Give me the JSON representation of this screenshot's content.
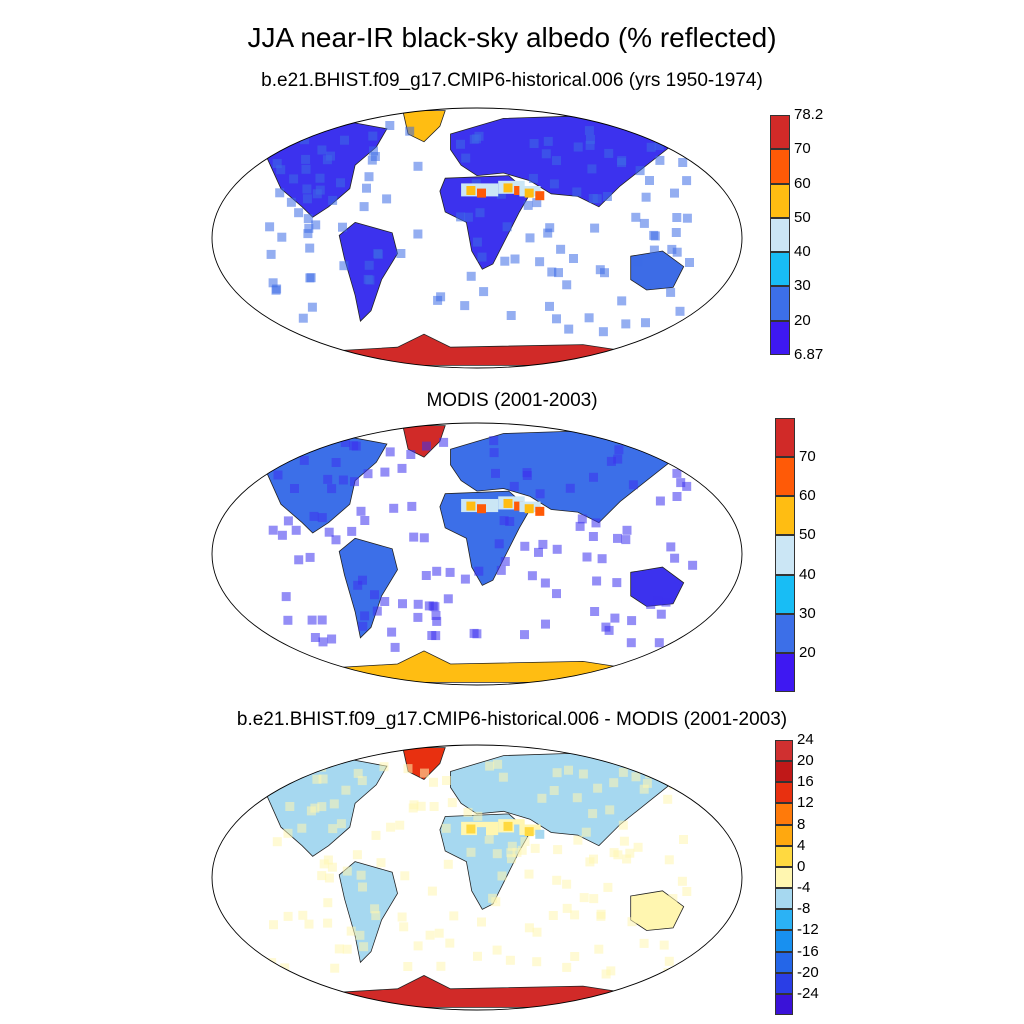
{
  "title": "JJA near-IR black-sky albedo (% reflected)",
  "panels": [
    {
      "subtitle": "b.e21.BHIST.f09_g17.CMIP6-historical.006 (yrs 1950-1974)",
      "colorbar": {
        "colors": [
          "#3e18f2",
          "#3c6fe8",
          "#18bdf5",
          "#cbe6f5",
          "#ffbd12",
          "#ff5a07",
          "#d12a28"
        ],
        "labels": [
          "6.87",
          "20",
          "30",
          "40",
          "50",
          "60",
          "70",
          "78.2"
        ]
      },
      "palette": {
        "land": "#3c32ee",
        "land_alt": "#3d6ce6",
        "desert": "#cbe6f5",
        "desert_hot": "#ffbd12",
        "desert_red": "#ff5a07",
        "greenland": "#ffbd12",
        "antarctica": "#d12a28"
      }
    },
    {
      "subtitle": "MODIS (2001-2003)",
      "colorbar": {
        "colors": [
          "#3e18f2",
          "#3c6fe8",
          "#18bdf5",
          "#cbe6f5",
          "#ffbd12",
          "#ff5a07",
          "#d12a28"
        ],
        "labels": [
          "20",
          "30",
          "40",
          "50",
          "60",
          "70"
        ]
      },
      "palette": {
        "land": "#3c6fe8",
        "land_alt": "#3c32ee",
        "desert": "#cbe6f5",
        "desert_hot": "#ffbd12",
        "desert_red": "#ff5a07",
        "greenland": "#d12a28",
        "antarctica": "#ffbd12"
      }
    },
    {
      "subtitle": "b.e21.BHIST.f09_g17.CMIP6-historical.006 - MODIS (2001-2003)",
      "colorbar": {
        "colors": [
          "#3a12d8",
          "#2a3ee6",
          "#2466e8",
          "#1890f0",
          "#2bb2f5",
          "#a6d8f0",
          "#fff6b0",
          "#ffd940",
          "#ffa80f",
          "#ff7a0a",
          "#e83010",
          "#c01818",
          "#d03030"
        ],
        "labels": [
          "-24",
          "-20",
          "-16",
          "-12",
          "-8",
          "-4",
          "0",
          "4",
          "8",
          "12",
          "16",
          "20",
          "24"
        ]
      },
      "palette": {
        "land": "#a6d8f0",
        "land_alt": "#fff6b0",
        "desert": "#fff6b0",
        "desert_hot": "#ffd940",
        "desert_red": "#a6d8f0",
        "greenland": "#e83010",
        "antarctica": "#d12a28"
      }
    }
  ]
}
